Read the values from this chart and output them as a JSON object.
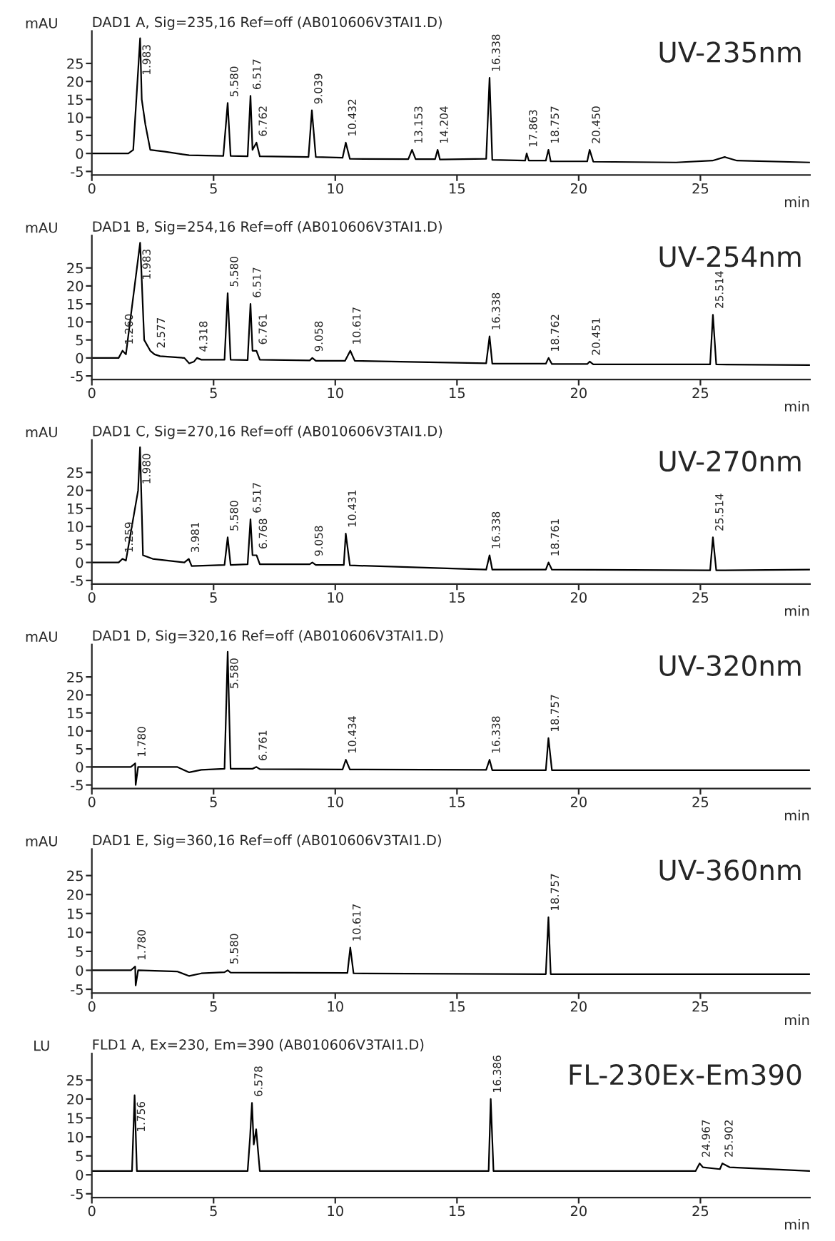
{
  "chart_data": [
    {
      "type": "line",
      "title": "DAD1 A, Sig=235,16 Ref=off (AB010606V3TAI1.D)",
      "ylabel": "mAU",
      "xlabel": "min",
      "xlim": [
        0,
        29.5
      ],
      "ylim": [
        -6,
        34
      ],
      "xticks": [
        0,
        5,
        10,
        15,
        20,
        25
      ],
      "yticks": [
        -5,
        0,
        5,
        10,
        15,
        20,
        25
      ],
      "series": [
        {
          "color": "#000000",
          "x": [
            0,
            1.5,
            1.7,
            1.983,
            2.05,
            2.2,
            2.4,
            3,
            4,
            5.4,
            5.58,
            5.7,
            6.4,
            6.517,
            6.6,
            6.762,
            6.9,
            8.9,
            9.039,
            9.2,
            10.3,
            10.432,
            10.6,
            13.0,
            13.153,
            13.3,
            14.1,
            14.204,
            14.3,
            16.2,
            16.338,
            16.45,
            17.8,
            17.863,
            17.95,
            18.65,
            18.757,
            18.85,
            20.35,
            20.45,
            20.6,
            24,
            25.5,
            26,
            26.5,
            29.5
          ],
          "values": [
            0,
            0,
            1,
            32,
            15,
            8,
            1,
            0.5,
            -0.5,
            -0.7,
            14,
            -0.7,
            -0.8,
            16,
            1,
            3,
            -0.8,
            -1,
            12,
            -1,
            -1.2,
            3,
            -1.5,
            -1.6,
            1,
            -1.6,
            -1.6,
            1,
            -1.7,
            -1.5,
            21,
            -1.8,
            -2,
            0,
            -2,
            -2,
            1,
            -2.2,
            -2.2,
            1,
            -2.3,
            -2.5,
            -2,
            -1,
            -2,
            -2.5
          ]
        }
      ],
      "annotations": [
        "UV-235nm",
        {
          "text": "1.983",
          "x": 1.983,
          "y": 32
        },
        {
          "text": "5.580",
          "x": 5.58,
          "y": 14
        },
        {
          "text": "6.517",
          "x": 6.517,
          "y": 16
        },
        {
          "text": "6.762",
          "x": 6.762,
          "y": 3
        },
        {
          "text": "9.039",
          "x": 9.039,
          "y": 12
        },
        {
          "text": "10.432",
          "x": 10.432,
          "y": 3
        },
        {
          "text": "13.153",
          "x": 13.153,
          "y": 1
        },
        {
          "text": "14.204",
          "x": 14.204,
          "y": 1
        },
        {
          "text": "16.338",
          "x": 16.338,
          "y": 21
        },
        {
          "text": "17.863",
          "x": 17.863,
          "y": 0
        },
        {
          "text": "18.757",
          "x": 18.757,
          "y": 1
        },
        {
          "text": "20.450",
          "x": 20.45,
          "y": 1
        }
      ]
    },
    {
      "type": "line",
      "title": "DAD1 B, Sig=254,16 Ref=off (AB010606V3TAI1.D)",
      "ylabel": "mAU",
      "xlabel": "min",
      "xlim": [
        0,
        29.5
      ],
      "ylim": [
        -6,
        34
      ],
      "xticks": [
        0,
        5,
        10,
        15,
        20,
        25
      ],
      "yticks": [
        -5,
        0,
        5,
        10,
        15,
        20,
        25
      ],
      "series": [
        {
          "color": "#000000",
          "x": [
            0,
            1.1,
            1.26,
            1.4,
            1.983,
            2.03,
            2.15,
            2.4,
            2.577,
            2.8,
            3.8,
            4.0,
            4.2,
            4.318,
            4.5,
            5.45,
            5.58,
            5.7,
            6.4,
            6.517,
            6.6,
            6.761,
            6.9,
            8.95,
            9.058,
            9.2,
            10.4,
            10.617,
            10.8,
            16.2,
            16.338,
            16.45,
            18.65,
            18.762,
            18.9,
            20.35,
            20.451,
            20.6,
            25.4,
            25.514,
            25.65,
            29.5
          ],
          "values": [
            0,
            0,
            2,
            1,
            32,
            25,
            5,
            2,
            1,
            0.5,
            0,
            -1.5,
            -1,
            0,
            -0.5,
            -0.5,
            18,
            -0.5,
            -0.6,
            15,
            2,
            2,
            -0.5,
            -0.7,
            0,
            -0.8,
            -0.8,
            2,
            -0.8,
            -1.5,
            6,
            -1.6,
            -1.6,
            0,
            -1.7,
            -1.7,
            -1,
            -1.8,
            -1.8,
            12,
            -1.8,
            -2
          ]
        }
      ],
      "annotations": [
        "UV-254nm",
        {
          "text": "1.260",
          "x": 1.26,
          "y": 2
        },
        {
          "text": "1.983",
          "x": 1.983,
          "y": 32
        },
        {
          "text": "2.577",
          "x": 2.577,
          "y": 1
        },
        {
          "text": "4.318",
          "x": 4.318,
          "y": 0
        },
        {
          "text": "5.580",
          "x": 5.58,
          "y": 18
        },
        {
          "text": "6.517",
          "x": 6.517,
          "y": 15
        },
        {
          "text": "6.761",
          "x": 6.761,
          "y": 2
        },
        {
          "text": "9.058",
          "x": 9.058,
          "y": 0
        },
        {
          "text": "10.617",
          "x": 10.617,
          "y": 2
        },
        {
          "text": "16.338",
          "x": 16.338,
          "y": 6
        },
        {
          "text": "18.762",
          "x": 18.762,
          "y": 0
        },
        {
          "text": "20.451",
          "x": 20.451,
          "y": -1
        },
        {
          "text": "25.514",
          "x": 25.514,
          "y": 12
        }
      ]
    },
    {
      "type": "line",
      "title": "DAD1 C, Sig=270,16 Ref=off (AB010606V3TAI1.D)",
      "ylabel": "mAU",
      "xlabel": "min",
      "xlim": [
        0,
        29.5
      ],
      "ylim": [
        -6,
        34
      ],
      "xticks": [
        0,
        5,
        10,
        15,
        20,
        25
      ],
      "yticks": [
        -5,
        0,
        5,
        10,
        15,
        20,
        25
      ],
      "series": [
        {
          "color": "#000000",
          "x": [
            0,
            1.1,
            1.259,
            1.4,
            1.9,
            1.98,
            2.1,
            2.5,
            3.8,
            3.981,
            4.1,
            5.45,
            5.58,
            5.7,
            6.4,
            6.517,
            6.6,
            6.768,
            6.9,
            8.95,
            9.058,
            9.2,
            10.35,
            10.431,
            10.6,
            16.2,
            16.338,
            16.45,
            18.65,
            18.761,
            18.9,
            25.4,
            25.514,
            25.65,
            29.5
          ],
          "values": [
            0,
            0,
            1,
            0.5,
            20,
            32,
            2,
            1,
            0,
            1,
            -1,
            -0.7,
            7,
            -0.7,
            -0.5,
            12,
            2,
            2,
            -0.5,
            -0.5,
            0,
            -0.7,
            -0.7,
            8,
            -0.8,
            -2,
            2,
            -2,
            -2,
            0,
            -2,
            -2.2,
            7,
            -2.2,
            -2
          ]
        }
      ],
      "annotations": [
        "UV-270nm",
        {
          "text": "1.259",
          "x": 1.259,
          "y": 1
        },
        {
          "text": "1.980",
          "x": 1.98,
          "y": 32
        },
        {
          "text": "3.981",
          "x": 3.981,
          "y": 1
        },
        {
          "text": "5.580",
          "x": 5.58,
          "y": 7
        },
        {
          "text": "6.517",
          "x": 6.517,
          "y": 12
        },
        {
          "text": "6.768",
          "x": 6.768,
          "y": 2
        },
        {
          "text": "9.058",
          "x": 9.058,
          "y": 0
        },
        {
          "text": "10.431",
          "x": 10.431,
          "y": 8
        },
        {
          "text": "16.338",
          "x": 16.338,
          "y": 2
        },
        {
          "text": "18.761",
          "x": 18.761,
          "y": 0
        },
        {
          "text": "25.514",
          "x": 25.514,
          "y": 7
        }
      ]
    },
    {
      "type": "line",
      "title": "DAD1 D, Sig=320,16 Ref=off (AB010606V3TAI1.D)",
      "ylabel": "mAU",
      "xlabel": "min",
      "xlim": [
        0,
        29.5
      ],
      "ylim": [
        -6,
        34
      ],
      "xticks": [
        0,
        5,
        10,
        15,
        20,
        25
      ],
      "yticks": [
        -5,
        0,
        5,
        10,
        15,
        20,
        25
      ],
      "series": [
        {
          "color": "#000000",
          "x": [
            0,
            1.6,
            1.78,
            1.8,
            1.9,
            3.5,
            4.0,
            4.5,
            5.45,
            5.58,
            5.7,
            6.6,
            6.761,
            6.9,
            10.3,
            10.434,
            10.6,
            16.2,
            16.338,
            16.45,
            18.65,
            18.757,
            18.9,
            29.5
          ],
          "values": [
            0,
            0,
            1,
            -5,
            0,
            0,
            -1.5,
            -0.8,
            -0.5,
            32,
            -0.5,
            -0.5,
            0,
            -0.6,
            -0.7,
            2,
            -0.7,
            -0.8,
            2,
            -0.9,
            -0.9,
            8,
            -0.9,
            -0.9
          ]
        }
      ],
      "annotations": [
        "UV-320nm",
        {
          "text": "1.780",
          "x": 1.78,
          "y": 1
        },
        {
          "text": "5.580",
          "x": 5.58,
          "y": 32
        },
        {
          "text": "6.761",
          "x": 6.761,
          "y": 0
        },
        {
          "text": "10.434",
          "x": 10.434,
          "y": 2
        },
        {
          "text": "16.338",
          "x": 16.338,
          "y": 2
        },
        {
          "text": "18.757",
          "x": 18.757,
          "y": 8
        }
      ]
    },
    {
      "type": "line",
      "title": "DAD1 E, Sig=360,16 Ref=off (AB010606V3TAI1.D)",
      "ylabel": "mAU",
      "xlabel": "min",
      "xlim": [
        0,
        29.5
      ],
      "ylim": [
        -6,
        32
      ],
      "xticks": [
        0,
        5,
        10,
        15,
        20,
        25
      ],
      "yticks": [
        -5,
        0,
        5,
        10,
        15,
        20,
        25
      ],
      "series": [
        {
          "color": "#000000",
          "x": [
            0,
            1.6,
            1.78,
            1.8,
            1.9,
            3.5,
            4.0,
            4.5,
            5.45,
            5.58,
            5.7,
            10.5,
            10.617,
            10.75,
            18.65,
            18.757,
            18.85,
            29.5
          ],
          "values": [
            0,
            0,
            1,
            -4,
            0,
            -0.3,
            -1.5,
            -0.8,
            -0.5,
            0,
            -0.6,
            -0.7,
            6,
            -0.8,
            -1,
            14,
            -1,
            -1
          ]
        }
      ],
      "annotations": [
        "UV-360nm",
        {
          "text": "1.780",
          "x": 1.78,
          "y": 1
        },
        {
          "text": "5.580",
          "x": 5.58,
          "y": 0
        },
        {
          "text": "10.617",
          "x": 10.617,
          "y": 6
        },
        {
          "text": "18.757",
          "x": 18.757,
          "y": 14
        }
      ]
    },
    {
      "type": "line",
      "title": "FLD1 A, Ex=230, Em=390 (AB010606V3TAI1.D)",
      "ylabel": "LU",
      "xlabel": "min",
      "xlim": [
        0,
        29.5
      ],
      "ylim": [
        -6,
        32
      ],
      "xticks": [
        0,
        5,
        10,
        15,
        20,
        25
      ],
      "yticks": [
        -5,
        0,
        5,
        10,
        15,
        20,
        25
      ],
      "series": [
        {
          "color": "#000000",
          "x": [
            0,
            1.65,
            1.756,
            1.85,
            6.4,
            6.5,
            6.578,
            6.65,
            6.75,
            6.9,
            16.3,
            16.386,
            16.5,
            24.8,
            24.967,
            25.1,
            25.8,
            25.902,
            26.2,
            29.5
          ],
          "values": [
            1,
            1,
            21,
            1,
            1,
            10,
            19,
            8,
            12,
            1,
            1,
            20,
            1,
            1,
            3,
            2,
            1.5,
            3,
            2,
            1
          ]
        }
      ],
      "annotations": [
        "FL-230Ex-Em390",
        {
          "text": "1.756",
          "x": 1.756,
          "y": 21
        },
        {
          "text": "6.578",
          "x": 6.578,
          "y": 19
        },
        {
          "text": "16.386",
          "x": 16.386,
          "y": 20
        },
        {
          "text": "24.967",
          "x": 24.967,
          "y": 3
        },
        {
          "text": "25.902",
          "x": 25.902,
          "y": 3
        }
      ]
    }
  ]
}
